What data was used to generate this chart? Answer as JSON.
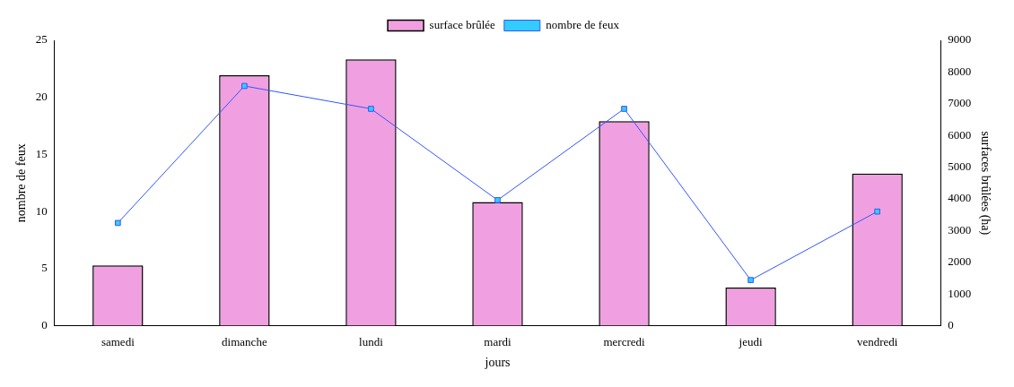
{
  "chart_data": {
    "type": "bar",
    "xlabel": "jours",
    "ylabel": "nombre de feux",
    "y2label": "surfaces brûlées (ha)",
    "categories": [
      "samedi",
      "dimanche",
      "lundi",
      "mardi",
      "mercredi",
      "jeudi",
      "vendredi"
    ],
    "series": [
      {
        "name": "surface brûlée",
        "axis": "y2",
        "color": "#f0a0e0",
        "values": [
          1900,
          7900,
          8400,
          3900,
          6450,
          1200,
          4800
        ]
      },
      {
        "name": "nombre de feux",
        "type": "line",
        "axis": "y",
        "color": "#3355ff",
        "marker": "square",
        "values": [
          9,
          21,
          19,
          11,
          19,
          4,
          10
        ]
      }
    ],
    "ylim": [
      0,
      25
    ],
    "yticks": [
      0,
      5,
      10,
      15,
      20,
      25
    ],
    "y2lim": [
      0,
      9000
    ],
    "y2ticks": [
      0,
      1000,
      2000,
      3000,
      4000,
      5000,
      6000,
      7000,
      8000,
      9000
    ],
    "grid": false,
    "legend": "top"
  }
}
